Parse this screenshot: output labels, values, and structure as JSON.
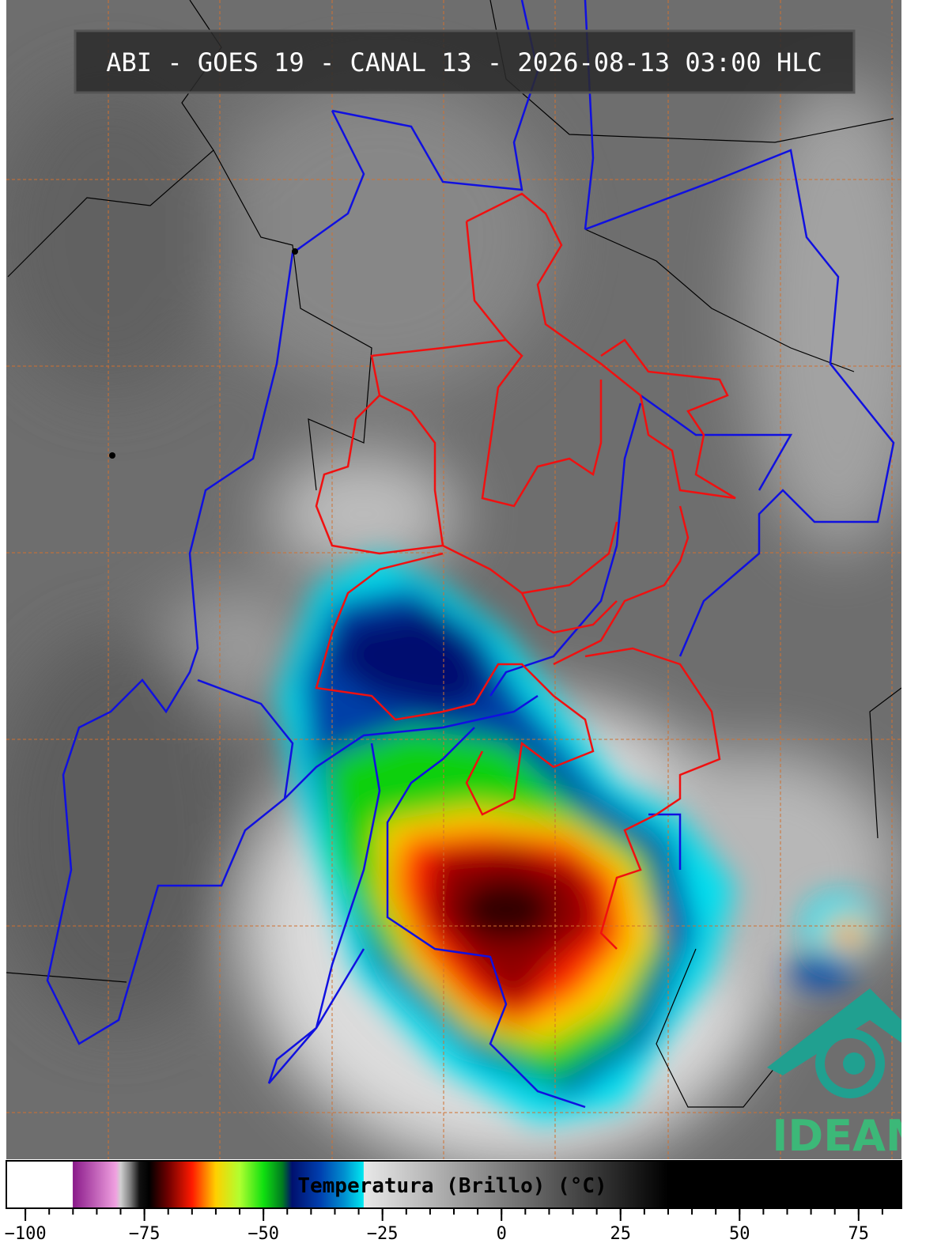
{
  "header": {
    "title": "ABI - GOES 19 - CANAL 13 - 2026-08-13 03:00 HLC"
  },
  "colorbar": {
    "label": "Temperatura (Brillo) (°C)",
    "range": [
      -104,
      84
    ],
    "ticks": [
      {
        "value": -100,
        "label": "−100"
      },
      {
        "value": -75,
        "label": "−75"
      },
      {
        "value": -50,
        "label": "−50"
      },
      {
        "value": -25,
        "label": "−25"
      },
      0,
      25,
      50,
      75
    ],
    "minor_tick_step": 5,
    "stops": [
      {
        "value": -104,
        "color": "#ffffff"
      },
      {
        "value": -90.1,
        "color": "#ffffff"
      },
      {
        "value": -90,
        "color": "#8a1a8a"
      },
      {
        "value": -81,
        "color": "#f0a0e0"
      },
      {
        "value": -80,
        "color": "#d0d0d0"
      },
      {
        "value": -78,
        "color": "#808080"
      },
      {
        "value": -76,
        "color": "#101010"
      },
      {
        "value": -74,
        "color": "#000000"
      },
      {
        "value": -70,
        "color": "#700000"
      },
      {
        "value": -65,
        "color": "#ff1a00"
      },
      {
        "value": -60,
        "color": "#ffd000"
      },
      {
        "value": -55,
        "color": "#b0ff30"
      },
      {
        "value": -50,
        "color": "#10e010"
      },
      {
        "value": -46,
        "color": "#007a20"
      },
      {
        "value": -44,
        "color": "#00106e"
      },
      {
        "value": -38,
        "color": "#0040b0"
      },
      {
        "value": -33,
        "color": "#0090d0"
      },
      {
        "value": -29,
        "color": "#00e8f0"
      },
      {
        "value": -28.9,
        "color": "#e8e8e8"
      },
      {
        "value": 35,
        "color": "#000000"
      },
      {
        "value": 84,
        "color": "#000000"
      }
    ]
  },
  "logo": {
    "text": "IDEAM"
  }
}
